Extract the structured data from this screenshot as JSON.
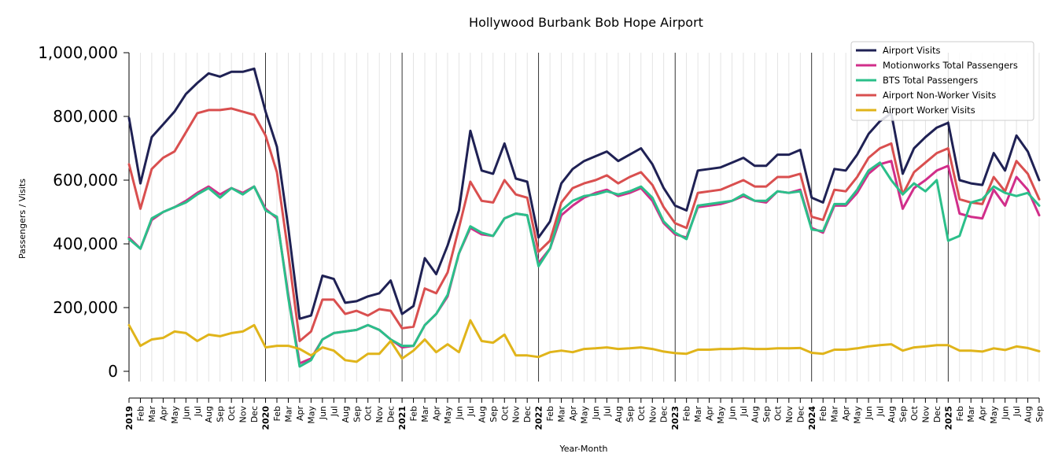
{
  "chart_data": {
    "type": "line",
    "title": "Hollywood Burbank Bob Hope Airport",
    "xlabel": "Year-Month",
    "ylabel": "Passengers / Visits",
    "ylim": [
      -30000,
      1000000
    ],
    "yticks": [
      0,
      200000,
      400000,
      600000,
      800000,
      1000000
    ],
    "ytick_labels": [
      "0",
      "200,000",
      "400,000",
      "600,000",
      "800,000",
      "1,000,000"
    ],
    "legend_position": "top-right",
    "categories": [
      "2019",
      "Feb",
      "Mar",
      "Apr",
      "May",
      "Jun",
      "Jul",
      "Aug",
      "Sep",
      "Oct",
      "Nov",
      "Dec",
      "2020",
      "Feb",
      "Mar",
      "Apr",
      "May",
      "Jun",
      "Jul",
      "Aug",
      "Sep",
      "Oct",
      "Nov",
      "Dec",
      "2021",
      "Feb",
      "Mar",
      "Apr",
      "May",
      "Jun",
      "Jul",
      "Aug",
      "Sep",
      "Oct",
      "Nov",
      "Dec",
      "2022",
      "Feb",
      "Mar",
      "Apr",
      "May",
      "Jun",
      "Jul",
      "Aug",
      "Sep",
      "Oct",
      "Nov",
      "Dec",
      "2023",
      "Feb",
      "Mar",
      "Apr",
      "May",
      "Jun",
      "Jul",
      "Aug",
      "Sep",
      "Oct",
      "Nov",
      "Dec",
      "2024",
      "Feb",
      "Mar",
      "Apr",
      "May",
      "Jun",
      "Jul",
      "Aug",
      "Sep",
      "Oct",
      "Nov",
      "Dec",
      "2025",
      "Feb",
      "Mar",
      "Apr",
      "May",
      "Jun",
      "Jul",
      "Aug",
      "Sep"
    ],
    "series": [
      {
        "name": "Airport Visits",
        "color": "#1f2154",
        "values": [
          795000,
          590000,
          735000,
          775000,
          815000,
          870000,
          905000,
          935000,
          925000,
          940000,
          940000,
          950000,
          815000,
          705000,
          450000,
          165000,
          175000,
          300000,
          290000,
          215000,
          220000,
          235000,
          245000,
          285000,
          180000,
          205000,
          355000,
          305000,
          395000,
          505000,
          755000,
          630000,
          620000,
          715000,
          605000,
          595000,
          420000,
          470000,
          590000,
          635000,
          660000,
          675000,
          690000,
          660000,
          680000,
          700000,
          650000,
          575000,
          520000,
          505000,
          630000,
          635000,
          640000,
          655000,
          670000,
          645000,
          645000,
          680000,
          680000,
          695000,
          545000,
          530000,
          635000,
          630000,
          680000,
          745000,
          785000,
          810000,
          620000,
          700000,
          735000,
          765000,
          780000,
          600000,
          590000,
          585000,
          685000,
          630000,
          740000,
          690000,
          600000
        ]
      },
      {
        "name": "Motionworks Total Passengers",
        "color": "#d12e8a",
        "values": [
          420000,
          385000,
          475000,
          500000,
          515000,
          535000,
          560000,
          580000,
          555000,
          575000,
          560000,
          580000,
          510000,
          480000,
          240000,
          25000,
          40000,
          100000,
          120000,
          125000,
          130000,
          145000,
          130000,
          100000,
          75000,
          80000,
          145000,
          180000,
          235000,
          370000,
          450000,
          430000,
          425000,
          480000,
          495000,
          490000,
          340000,
          385000,
          490000,
          520000,
          545000,
          560000,
          570000,
          550000,
          560000,
          575000,
          535000,
          465000,
          430000,
          420000,
          515000,
          520000,
          525000,
          535000,
          550000,
          535000,
          530000,
          565000,
          560000,
          570000,
          450000,
          435000,
          520000,
          520000,
          560000,
          620000,
          650000,
          660000,
          510000,
          575000,
          600000,
          630000,
          645000,
          495000,
          485000,
          480000,
          570000,
          520000,
          610000,
          570000,
          490000
        ]
      },
      {
        "name": "BTS Total Passengers",
        "color": "#2bbf8a",
        "values": [
          415000,
          385000,
          480000,
          500000,
          515000,
          530000,
          555000,
          575000,
          545000,
          575000,
          555000,
          580000,
          505000,
          485000,
          230000,
          15000,
          35000,
          100000,
          120000,
          125000,
          130000,
          145000,
          130000,
          100000,
          80000,
          80000,
          145000,
          180000,
          240000,
          370000,
          455000,
          435000,
          425000,
          480000,
          495000,
          490000,
          330000,
          385000,
          505000,
          535000,
          550000,
          555000,
          565000,
          555000,
          565000,
          580000,
          545000,
          470000,
          435000,
          415000,
          520000,
          525000,
          530000,
          535000,
          555000,
          535000,
          535000,
          565000,
          560000,
          565000,
          445000,
          440000,
          525000,
          525000,
          570000,
          630000,
          655000,
          600000,
          555000,
          590000,
          565000,
          600000,
          410000,
          425000,
          530000,
          540000,
          580000,
          560000,
          550000,
          560000,
          520000
        ]
      },
      {
        "name": "Airport Non-Worker Visits",
        "color": "#d94f4f",
        "values": [
          650000,
          510000,
          635000,
          670000,
          690000,
          750000,
          810000,
          820000,
          820000,
          825000,
          815000,
          805000,
          740000,
          625000,
          370000,
          95000,
          125000,
          225000,
          225000,
          180000,
          190000,
          175000,
          195000,
          190000,
          135000,
          140000,
          260000,
          245000,
          310000,
          450000,
          595000,
          535000,
          530000,
          600000,
          555000,
          545000,
          375000,
          410000,
          530000,
          575000,
          590000,
          600000,
          615000,
          590000,
          610000,
          625000,
          585000,
          515000,
          465000,
          450000,
          560000,
          565000,
          570000,
          585000,
          600000,
          580000,
          580000,
          610000,
          610000,
          620000,
          485000,
          475000,
          570000,
          565000,
          610000,
          670000,
          700000,
          715000,
          555000,
          625000,
          655000,
          685000,
          700000,
          540000,
          530000,
          525000,
          610000,
          565000,
          660000,
          620000,
          540000
        ]
      },
      {
        "name": "Airport Worker Visits",
        "color": "#e0b41a",
        "values": [
          145000,
          80000,
          100000,
          105000,
          125000,
          120000,
          95000,
          115000,
          110000,
          120000,
          125000,
          145000,
          75000,
          80000,
          80000,
          70000,
          50000,
          75000,
          65000,
          35000,
          30000,
          55000,
          55000,
          95000,
          40000,
          65000,
          100000,
          60000,
          85000,
          60000,
          160000,
          95000,
          90000,
          115000,
          50000,
          50000,
          45000,
          60000,
          65000,
          60000,
          70000,
          72000,
          75000,
          70000,
          72000,
          75000,
          70000,
          62000,
          57000,
          55000,
          68000,
          68000,
          70000,
          70000,
          72000,
          70000,
          70000,
          72000,
          72000,
          73000,
          58000,
          55000,
          68000,
          68000,
          72000,
          78000,
          82000,
          85000,
          65000,
          75000,
          78000,
          82000,
          82000,
          65000,
          65000,
          62000,
          72000,
          67000,
          78000,
          73000,
          63000
        ]
      }
    ]
  }
}
